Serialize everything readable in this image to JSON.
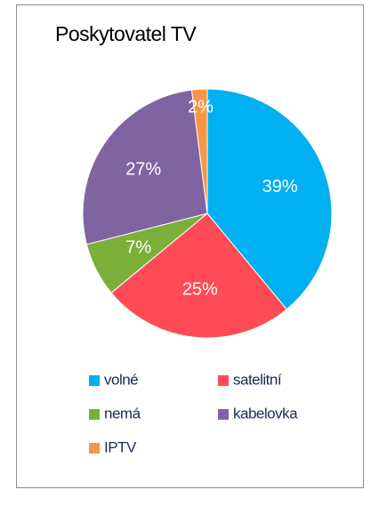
{
  "chart_data": {
    "type": "pie",
    "title": "Poskytovatel TV",
    "categories": [
      "volné",
      "satelitní",
      "nemá",
      "kabelovka",
      "IPTV"
    ],
    "values": [
      39,
      25,
      7,
      27,
      2
    ],
    "value_labels": [
      "39%",
      "25%",
      "7%",
      "27%",
      "2%"
    ],
    "colors": [
      "#00b0f0",
      "#ff4b55",
      "#7ab03a",
      "#8064a2",
      "#f79646"
    ],
    "legend": "bottom"
  }
}
